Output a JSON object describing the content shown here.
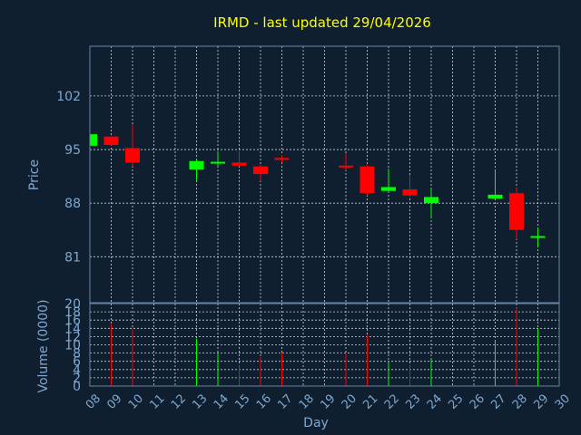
{
  "chart_data": {
    "type": "candlestick",
    "title": "IRMD - last updated 29/04/2026",
    "xlabel": "Day",
    "ylabel": "Price",
    "volume_label": "Volume (0000)",
    "x_ticks": [
      "08",
      "09",
      "10",
      "11",
      "12",
      "13",
      "14",
      "15",
      "16",
      "17",
      "18",
      "19",
      "20",
      "21",
      "22",
      "23",
      "24",
      "25",
      "26",
      "27",
      "28",
      "29",
      "30"
    ],
    "y_ticks": [
      81,
      88,
      95,
      102
    ],
    "ylim": [
      75,
      108.5
    ],
    "volume_ticks": [
      0,
      2,
      4,
      6,
      8,
      10,
      12,
      14,
      16,
      18,
      20
    ],
    "volume_ylim": [
      0,
      20
    ],
    "grid": true,
    "colors": {
      "up": "#00ff00",
      "down": "#ff0000",
      "background": "#0f1f30",
      "title": "#ffff00",
      "axis_text": "#7fa8d0"
    },
    "candles": [
      {
        "day": 8,
        "open": 95.5,
        "close": 97.0,
        "high": 97.0,
        "low": 95.5,
        "volume": 0
      },
      {
        "day": 9,
        "open": 96.7,
        "close": 95.6,
        "high": 96.7,
        "low": 95.5,
        "volume": 15
      },
      {
        "day": 10,
        "open": 95.2,
        "close": 93.3,
        "high": 98.3,
        "low": 92.8,
        "volume": 14
      },
      {
        "day": 13,
        "open": 92.4,
        "close": 93.5,
        "high": 93.8,
        "low": 91.0,
        "volume": 11.5
      },
      {
        "day": 14,
        "open": 93.2,
        "close": 93.4,
        "high": 94.8,
        "low": 92.8,
        "volume": 8
      },
      {
        "day": 15,
        "open": 93.3,
        "close": 92.9,
        "high": 94.8,
        "low": 92.8,
        "volume": 5
      },
      {
        "day": 16,
        "open": 92.8,
        "close": 91.8,
        "high": 93.0,
        "low": 90.9,
        "volume": 7
      },
      {
        "day": 17,
        "open": 93.9,
        "close": 93.7,
        "high": 94.3,
        "low": 93.3,
        "volume": 8
      },
      {
        "day": 20,
        "open": 92.9,
        "close": 92.8,
        "high": 94.5,
        "low": 92.3,
        "volume": 8
      },
      {
        "day": 21,
        "open": 92.8,
        "close": 89.3,
        "high": 93.0,
        "low": 89.0,
        "volume": 12.5
      },
      {
        "day": 22,
        "open": 89.6,
        "close": 90.1,
        "high": 92.5,
        "low": 89.5,
        "volume": 6
      },
      {
        "day": 23,
        "open": 89.8,
        "close": 89.0,
        "high": 91.7,
        "low": 88.8,
        "volume": 5
      },
      {
        "day": 24,
        "open": 88.0,
        "close": 88.8,
        "high": 89.9,
        "low": 86.0,
        "volume": 6.5
      },
      {
        "day": 27,
        "open": 88.6,
        "close": 89.1,
        "high": 92.3,
        "low": 88.5,
        "volume": 11
      },
      {
        "day": 28,
        "open": 89.3,
        "close": 84.5,
        "high": 90.0,
        "low": 83.3,
        "volume": 19
      },
      {
        "day": 29,
        "open": 83.6,
        "close": 83.7,
        "high": 84.8,
        "low": 82.3,
        "volume": 14
      }
    ]
  }
}
